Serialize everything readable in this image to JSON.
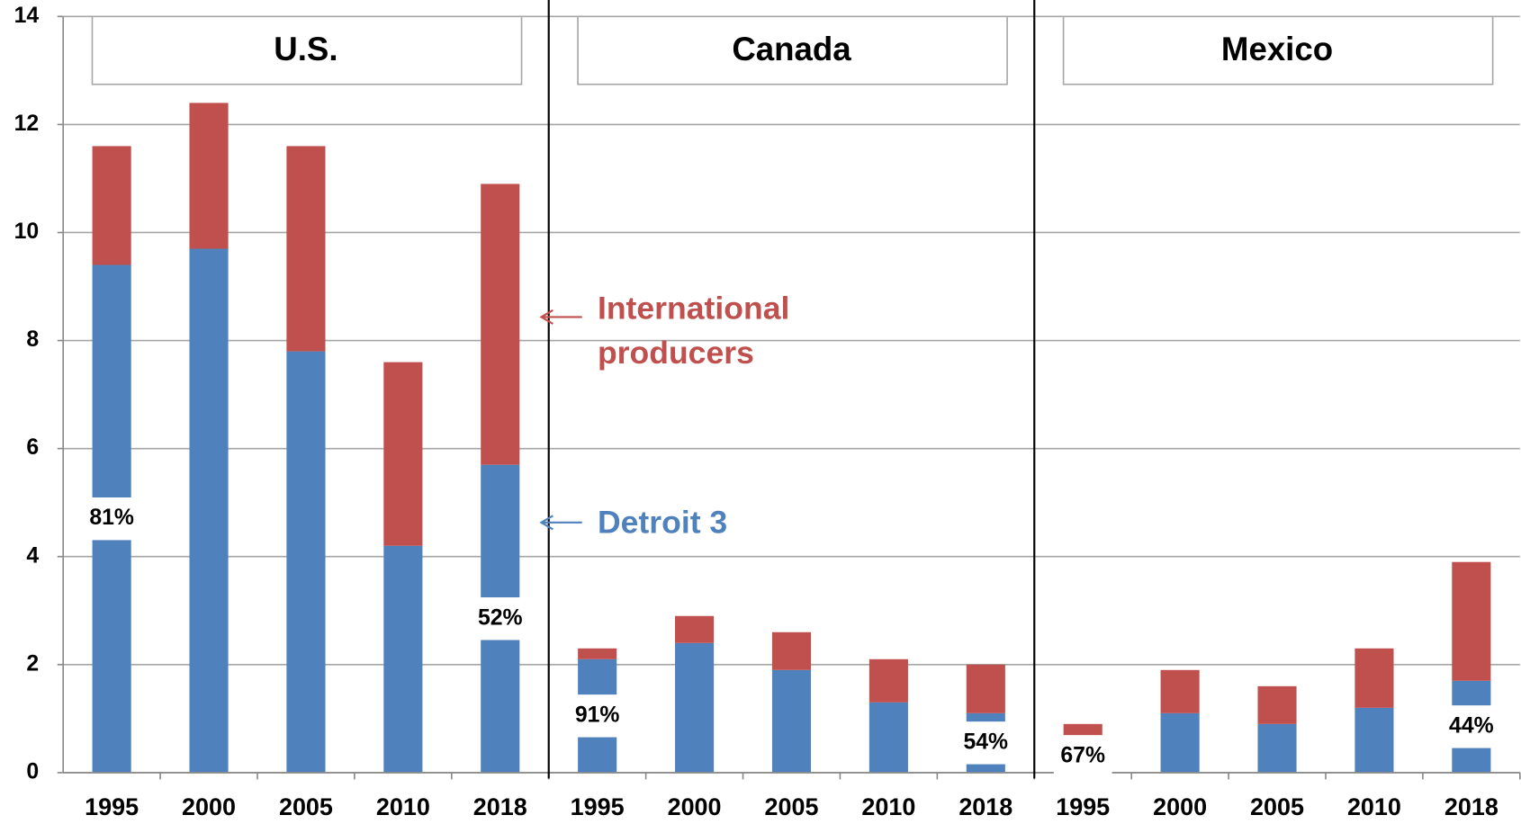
{
  "chart_data": {
    "type": "bar",
    "stacked": true,
    "ylim": [
      0,
      14
    ],
    "yticks": [
      0,
      2,
      4,
      6,
      8,
      10,
      12,
      14
    ],
    "grid": true,
    "groups": [
      {
        "title": "U.S.",
        "categories": [
          "1995",
          "2000",
          "2005",
          "2010",
          "2018"
        ]
      },
      {
        "title": "Canada",
        "categories": [
          "1995",
          "2000",
          "2005",
          "2010",
          "2018"
        ]
      },
      {
        "title": "Mexico",
        "categories": [
          "1995",
          "2000",
          "2005",
          "2010",
          "2018"
        ]
      }
    ],
    "series": [
      {
        "name": "Detroit 3",
        "color": "#4f81bd",
        "values": [
          9.4,
          9.7,
          7.8,
          4.2,
          5.7,
          2.1,
          2.4,
          1.9,
          1.3,
          1.1,
          0.6,
          1.1,
          0.9,
          1.2,
          1.7
        ]
      },
      {
        "name": "International producers",
        "color": "#c0504d",
        "values": [
          2.2,
          2.7,
          3.8,
          3.4,
          5.2,
          0.2,
          0.5,
          0.7,
          0.8,
          0.9,
          0.3,
          0.8,
          0.7,
          1.1,
          2.2
        ]
      }
    ],
    "share_labels": [
      "81%",
      null,
      null,
      null,
      "52%",
      "91%",
      null,
      null,
      null,
      "54%",
      "67%",
      null,
      null,
      null,
      "44%"
    ]
  }
}
